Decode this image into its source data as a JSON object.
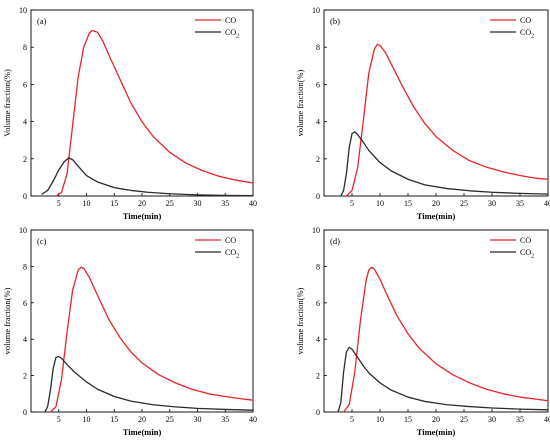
{
  "colors": {
    "CO": "#e8242a",
    "CO2": "#2b2b2b",
    "axis": "#000000"
  },
  "chart_data": [
    {
      "type": "line",
      "panel_label": "(a)",
      "xlabel": "Time(min)",
      "ylabel": "Volume fraction(%)",
      "xlim": [
        0,
        40
      ],
      "ylim": [
        0,
        10
      ],
      "xticks": [
        5,
        10,
        15,
        20,
        25,
        30,
        35,
        40
      ],
      "yticks": [
        0,
        2,
        4,
        6,
        8,
        10
      ],
      "grid": false,
      "legend": "top-right",
      "series": [
        {
          "name": "CO",
          "color": "#e8242a",
          "x": [
            4.5,
            5.5,
            6.5,
            7.5,
            8.5,
            9.5,
            10.5,
            11,
            12,
            13,
            14,
            16,
            18,
            20,
            22,
            25,
            28,
            31,
            34,
            37,
            40
          ],
          "y": [
            0.0,
            0.2,
            1.2,
            3.8,
            6.4,
            8.0,
            8.75,
            8.9,
            8.8,
            8.3,
            7.6,
            6.3,
            5.0,
            4.0,
            3.2,
            2.35,
            1.75,
            1.35,
            1.05,
            0.85,
            0.7
          ]
        },
        {
          "name": "CO",
          "name_sub": "2",
          "color": "#2b2b2b",
          "x": [
            2,
            3,
            4,
            5,
            6,
            6.8,
            7.5,
            8.5,
            10,
            12,
            15,
            18,
            21,
            25,
            30,
            35,
            40
          ],
          "y": [
            0.1,
            0.3,
            0.8,
            1.4,
            1.85,
            2.05,
            1.95,
            1.6,
            1.1,
            0.75,
            0.45,
            0.3,
            0.2,
            0.12,
            0.06,
            0.03,
            0.02
          ]
        }
      ]
    },
    {
      "type": "line",
      "panel_label": "(b)",
      "xlabel": "Time(min)",
      "ylabel": "volume fraction(%)",
      "xlim": [
        0,
        40
      ],
      "ylim": [
        0,
        10
      ],
      "xticks": [
        5,
        10,
        15,
        20,
        25,
        30,
        35,
        40
      ],
      "yticks": [
        0,
        2,
        4,
        6,
        8,
        10
      ],
      "grid": false,
      "legend": "top-right",
      "series": [
        {
          "name": "CO",
          "color": "#e8242a",
          "x": [
            4,
            5,
            6,
            7,
            8,
            9,
            9.5,
            10,
            11,
            12,
            14,
            16,
            18,
            20,
            23,
            26,
            29,
            32,
            35,
            38,
            40
          ],
          "y": [
            0.0,
            0.3,
            1.5,
            4.0,
            6.6,
            7.9,
            8.15,
            8.1,
            7.7,
            7.1,
            5.9,
            4.8,
            3.9,
            3.2,
            2.45,
            1.9,
            1.55,
            1.3,
            1.1,
            0.95,
            0.9
          ]
        },
        {
          "name": "CO",
          "name_sub": "2",
          "color": "#2b2b2b",
          "x": [
            3,
            3.5,
            4,
            4.5,
            5,
            5.5,
            6,
            7,
            8,
            10,
            12,
            15,
            18,
            22,
            26,
            30,
            35,
            40
          ],
          "y": [
            0.0,
            0.3,
            1.2,
            2.6,
            3.35,
            3.45,
            3.3,
            2.9,
            2.45,
            1.8,
            1.35,
            0.9,
            0.6,
            0.4,
            0.28,
            0.2,
            0.14,
            0.1
          ]
        }
      ]
    },
    {
      "type": "line",
      "panel_label": "(c)",
      "xlabel": "Time(min)",
      "ylabel": "volume fraction(%)",
      "xlim": [
        0,
        40
      ],
      "ylim": [
        0,
        10
      ],
      "xticks": [
        5,
        10,
        15,
        20,
        25,
        30,
        35,
        40
      ],
      "yticks": [
        0,
        2,
        4,
        6,
        8,
        10
      ],
      "grid": false,
      "legend": "top-right",
      "series": [
        {
          "name": "CO",
          "color": "#e8242a",
          "x": [
            3.5,
            4.5,
            5.5,
            6.5,
            7.5,
            8.5,
            9,
            9.5,
            10.5,
            12,
            14,
            16,
            18,
            20,
            23,
            26,
            29,
            32,
            35,
            38,
            40
          ],
          "y": [
            0.0,
            0.3,
            1.8,
            4.4,
            6.7,
            7.8,
            7.95,
            7.9,
            7.4,
            6.4,
            5.1,
            4.1,
            3.3,
            2.7,
            2.05,
            1.6,
            1.25,
            1.0,
            0.85,
            0.72,
            0.65
          ]
        },
        {
          "name": "CO",
          "name_sub": "2",
          "color": "#2b2b2b",
          "x": [
            2.5,
            3,
            3.5,
            4,
            4.5,
            5,
            5.5,
            6.5,
            8,
            10,
            12,
            15,
            18,
            22,
            26,
            30,
            35,
            40
          ],
          "y": [
            0.0,
            0.3,
            1.2,
            2.4,
            3.0,
            3.05,
            2.95,
            2.6,
            2.15,
            1.65,
            1.25,
            0.85,
            0.6,
            0.4,
            0.28,
            0.2,
            0.14,
            0.1
          ]
        }
      ]
    },
    {
      "type": "line",
      "panel_label": "(d)",
      "xlabel": "Time(min)",
      "ylabel": "volume fraction(%)",
      "xlim": [
        0,
        40
      ],
      "ylim": [
        0,
        10
      ],
      "xticks": [
        5,
        10,
        15,
        20,
        25,
        30,
        35,
        40
      ],
      "yticks": [
        0,
        2,
        4,
        6,
        8,
        10
      ],
      "grid": false,
      "legend": "top-right",
      "series": [
        {
          "name": "CO",
          "color": "#e8242a",
          "x": [
            3.5,
            4.5,
            5.5,
            6.5,
            7.5,
            8,
            8.5,
            9,
            10,
            11,
            13,
            15,
            17,
            20,
            23,
            26,
            29,
            32,
            35,
            38,
            40
          ],
          "y": [
            0.0,
            0.4,
            2.2,
            5.0,
            7.2,
            7.8,
            7.95,
            7.85,
            7.3,
            6.6,
            5.3,
            4.3,
            3.5,
            2.65,
            2.05,
            1.6,
            1.25,
            1.0,
            0.82,
            0.7,
            0.62
          ]
        },
        {
          "name": "CO",
          "name_sub": "2",
          "color": "#2b2b2b",
          "x": [
            2.5,
            3,
            3.5,
            4,
            4.5,
            5,
            6,
            7,
            8,
            10,
            12,
            15,
            18,
            22,
            26,
            30,
            35,
            40
          ],
          "y": [
            0.0,
            0.5,
            2.2,
            3.3,
            3.55,
            3.45,
            3.0,
            2.55,
            2.15,
            1.6,
            1.2,
            0.82,
            0.58,
            0.4,
            0.3,
            0.22,
            0.16,
            0.12
          ]
        }
      ]
    }
  ]
}
